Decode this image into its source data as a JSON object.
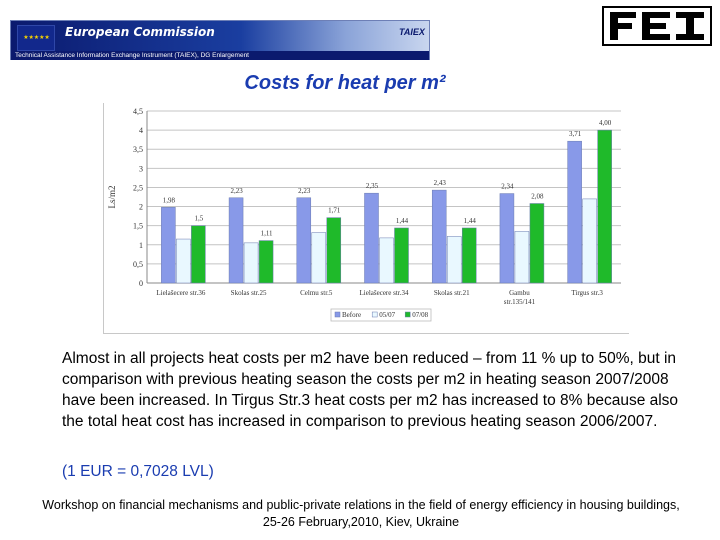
{
  "header": {
    "commission": "European Commission",
    "taiex": "TAIEX",
    "subtitle": "Technical Assistance Information Exchange Instrument (TAIEX), DG Enlargement",
    "logo_text": "FEI",
    "flag_stars": "★ ★ ★ ★ ★"
  },
  "slide_title": "Costs for heat per m²",
  "chart_data": {
    "type": "bar",
    "title": "Costs for heat per m²",
    "xlabel": "",
    "ylabel": "Ls/m2",
    "ylim": [
      0,
      4.5
    ],
    "yticks": [
      "0",
      "0,5",
      "1",
      "1,5",
      "2",
      "2,5",
      "3",
      "3,5",
      "4",
      "4,5"
    ],
    "categories": [
      "Lielašecere str.36",
      "Skolas str.25",
      "Celmu str.5",
      "Lielašecere str.34",
      "Skolas str.21",
      "Gambu str.135/141",
      "Tirgus str.3"
    ],
    "series": [
      {
        "name": "Before",
        "color": "#8899e8",
        "values": [
          1.98,
          2.23,
          2.23,
          2.35,
          2.43,
          2.34,
          3.71
        ],
        "labels": [
          "1,98",
          "2,23",
          "2,23",
          "2,35",
          "2,43",
          "2,34",
          "3,71"
        ]
      },
      {
        "name": "05/07",
        "color": "#e9f8ff",
        "values": [
          1.15,
          1.05,
          1.32,
          1.18,
          1.22,
          1.35,
          2.2
        ],
        "labels": [
          "",
          "",
          "",
          "",
          "",
          "",
          ""
        ]
      },
      {
        "name": "07/08",
        "color": "#1fba2a",
        "values": [
          1.5,
          1.11,
          1.71,
          1.44,
          1.44,
          2.08,
          4.0
        ],
        "labels": [
          "1,5",
          "1,11",
          "1,71",
          "1,44",
          "1,44",
          "2,08",
          "4,00"
        ]
      }
    ],
    "legend_position": "bottom"
  },
  "body_text": "Almost in all projects heat costs per m2 have been reduced – from 11 % up to 50%, but in comparison with previous heating season the costs per m2 in heating season 2007/2008 have been increased. In Tirgus Str.3 heat costs per m2 has increased to 8% because also the total heat cost has increased in comparison to previous heating season 2006/2007.",
  "exchange_rate": "(1 EUR = 0,7028 LVL)",
  "footer": "Workshop on financial mechanisms and public-private relations in the field of energy efficiency in housing buildings, 25-26 February,2010, Kiev, Ukraine"
}
